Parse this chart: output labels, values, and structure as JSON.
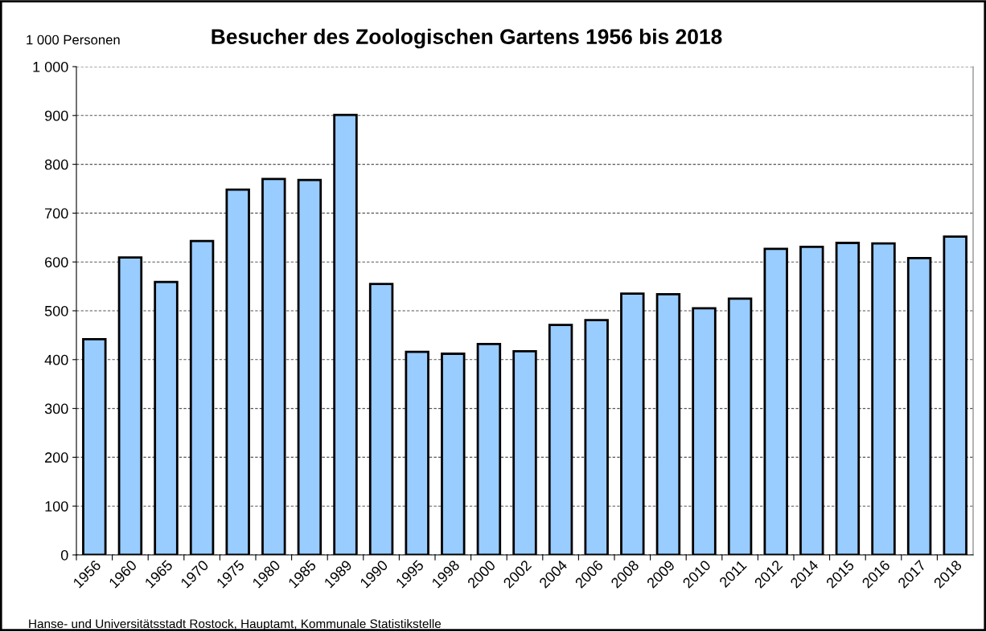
{
  "chart_data": {
    "type": "bar",
    "title": "Besucher des Zoologischen Gartens 1956 bis 2018",
    "ylabel": "1 000 Personen",
    "categories": [
      "1956",
      "1960",
      "1965",
      "1970",
      "1975",
      "1980",
      "1985",
      "1989",
      "1990",
      "1995",
      "1998",
      "2000",
      "2002",
      "2004",
      "2006",
      "2008",
      "2009",
      "2010",
      "2011",
      "2012",
      "2014",
      "2015",
      "2016",
      "2017",
      "2018"
    ],
    "values": [
      442,
      609,
      559,
      643,
      748,
      770,
      768,
      901,
      555,
      416,
      412,
      432,
      417,
      471,
      481,
      535,
      534,
      505,
      525,
      627,
      631,
      639,
      638,
      608,
      652
    ],
    "color": "#99ccff",
    "ylim": [
      0,
      1000
    ],
    "yticks": [
      0,
      100,
      200,
      300,
      400,
      500,
      600,
      700,
      800,
      900,
      {
        "value": 1000,
        "label": "1 000"
      }
    ],
    "grid": "y",
    "annotations": [
      "Hanse- und Universitätsstadt Rostock, Hauptamt, Kommunale Statistikstelle"
    ]
  }
}
